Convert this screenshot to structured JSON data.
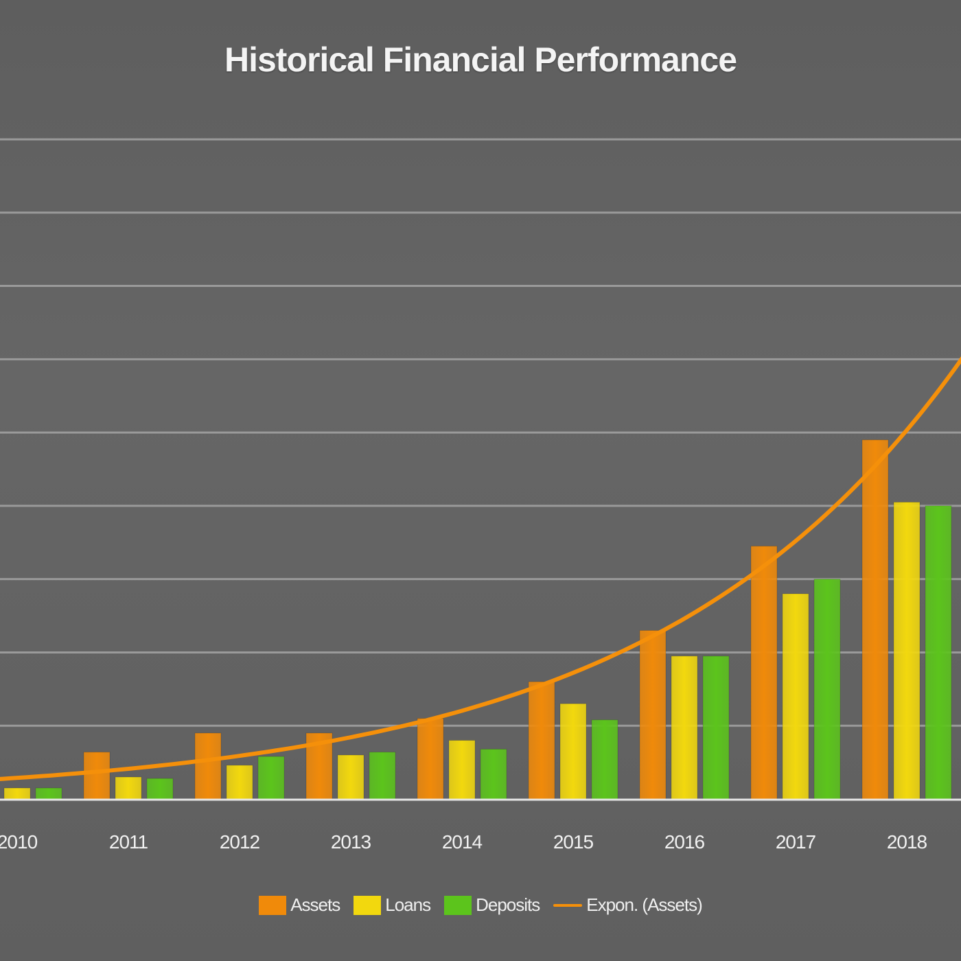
{
  "chart_data": {
    "type": "bar",
    "title": "Historical Financial Performance",
    "categories": [
      "2010",
      "2011",
      "2012",
      "2013",
      "2014",
      "2015",
      "2016",
      "2017",
      "2018"
    ],
    "series": [
      {
        "name": "Assets",
        "color": "#f08a0a",
        "values": [
          0.15,
          0.64,
          0.9,
          0.9,
          1.1,
          1.6,
          2.3,
          3.45,
          4.9
        ]
      },
      {
        "name": "Loans",
        "color": "#f2d80e",
        "values": [
          0.15,
          0.3,
          0.46,
          0.6,
          0.8,
          1.3,
          1.95,
          2.8,
          4.05
        ]
      },
      {
        "name": "Deposits",
        "color": "#5cc41c",
        "values": [
          0.15,
          0.28,
          0.58,
          0.64,
          0.68,
          1.08,
          1.95,
          3.0,
          4.0
        ]
      }
    ],
    "trendline": {
      "name": "Expon. (Assets)",
      "color": "#f5900a",
      "type": "exponential"
    },
    "ylim": [
      0,
      9
    ],
    "y_gridlines": 9,
    "grid": true,
    "legend_position": "bottom",
    "xlabel": "",
    "ylabel": ""
  }
}
